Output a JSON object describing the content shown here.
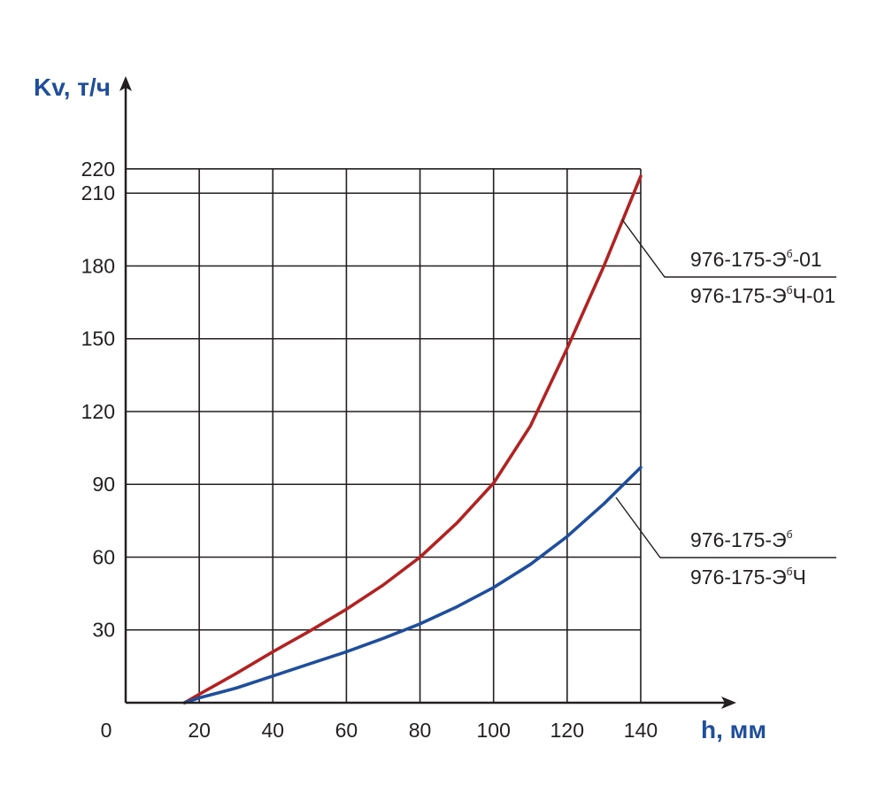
{
  "chart_data": {
    "type": "line",
    "ylabel": "Kv, т/ч",
    "xlabel": "h, мм",
    "origin_label": "0",
    "xlim": [
      0,
      140
    ],
    "ylim": [
      0,
      220
    ],
    "x_ticks": [
      20,
      40,
      60,
      80,
      100,
      120,
      140
    ],
    "y_ticks": [
      30,
      60,
      90,
      120,
      150,
      180,
      210,
      220
    ],
    "grid": true,
    "colors": {
      "upper": "#b22222",
      "lower": "#1f4e9c",
      "grid": "#231f20",
      "axis_title": "#1f4e9c"
    },
    "series": [
      {
        "key": "upper",
        "legend": {
          "line1_base": "976-175-Э",
          "line1_sup": "б",
          "line1_tail": "-01",
          "line2_base": "976-175-Э",
          "line2_sup": "б",
          "line2_tail": "Ч-01"
        },
        "points": [
          [
            16,
            0
          ],
          [
            20,
            3.5
          ],
          [
            30,
            12
          ],
          [
            40,
            21
          ],
          [
            50,
            29.5
          ],
          [
            60,
            38.5
          ],
          [
            70,
            48.5
          ],
          [
            80,
            60
          ],
          [
            90,
            74
          ],
          [
            100,
            90.5
          ],
          [
            110,
            114
          ],
          [
            120,
            146
          ],
          [
            130,
            180
          ],
          [
            140,
            217
          ]
        ]
      },
      {
        "key": "lower",
        "legend": {
          "line1_base": "976-175-Э",
          "line1_sup": "б",
          "line1_tail": "",
          "line2_base": "976-175-Э",
          "line2_sup": "б",
          "line2_tail": "Ч"
        },
        "points": [
          [
            16,
            0
          ],
          [
            20,
            2
          ],
          [
            30,
            6
          ],
          [
            40,
            11
          ],
          [
            50,
            16
          ],
          [
            60,
            21
          ],
          [
            70,
            26.5
          ],
          [
            80,
            32.5
          ],
          [
            90,
            39.5
          ],
          [
            100,
            47.5
          ],
          [
            110,
            57
          ],
          [
            120,
            68.5
          ],
          [
            130,
            82
          ],
          [
            140,
            97
          ]
        ]
      }
    ]
  }
}
